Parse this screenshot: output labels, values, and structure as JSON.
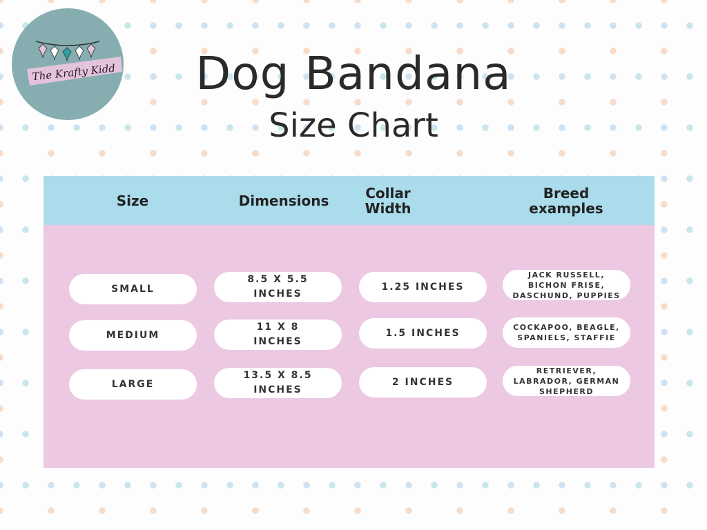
{
  "logo": {
    "text": "The Krafty Kidd",
    "colors": {
      "circle": "#86aeb1",
      "brush": "#e4c3dc"
    }
  },
  "title": "Dog Bandana",
  "subtitle": "Size Chart",
  "colors": {
    "header": "#abdcec",
    "body": "#ecc8e3"
  },
  "table": {
    "headers": [
      "Size",
      "Dimensions",
      "Collar Width",
      "Breed examples"
    ],
    "rows": [
      [
        "SMALL",
        "8.5 X 5.5 INCHES",
        "1.25 INCHES",
        "JACK RUSSELL, BICHON FRISE, DASCHUND, PUPPIES"
      ],
      [
        "MEDIUM",
        "11 X 8 INCHES",
        "1.5 INCHES",
        "COCKAPOO, BEAGLE, SPANIELS, STAFFIE"
      ],
      [
        "LARGE",
        "13.5 X 8.5 INCHES",
        "2 INCHES",
        "RETRIEVER, LABRADOR, GERMAN SHEPHERD"
      ]
    ]
  }
}
